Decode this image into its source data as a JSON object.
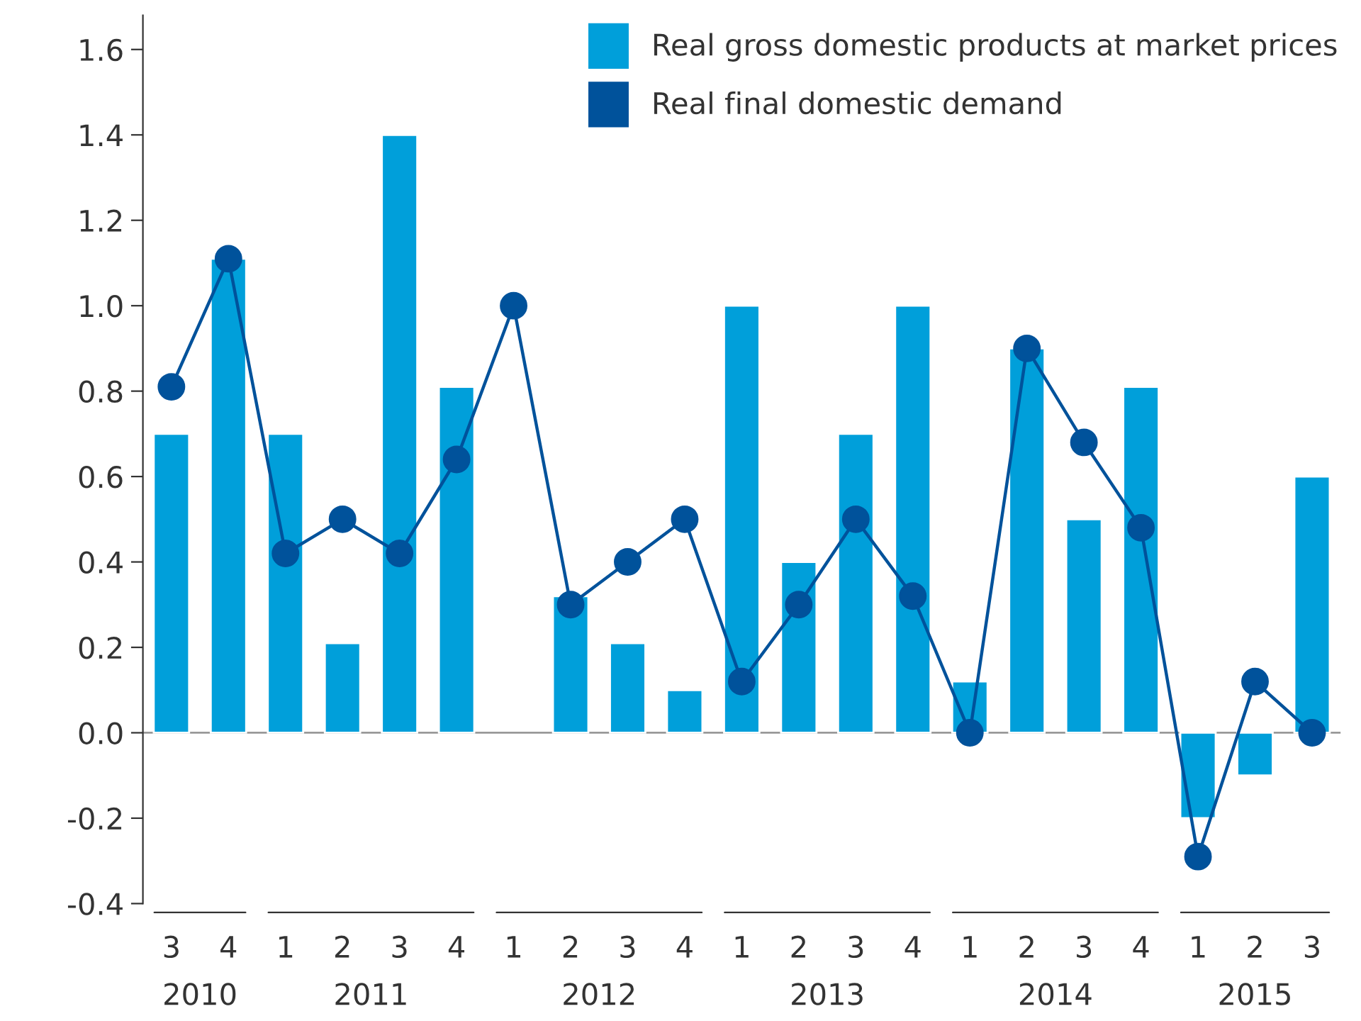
{
  "chart_data": {
    "type": "bar",
    "categories": [
      "3",
      "4",
      "1",
      "2",
      "3",
      "4",
      "1",
      "2",
      "3",
      "4",
      "1",
      "2",
      "3",
      "4",
      "1",
      "2",
      "3",
      "4",
      "1",
      "2",
      "3"
    ],
    "series": [
      {
        "name": "Real gross domestic products at market prices",
        "color": "#009fda",
        "values": [
          0.7,
          1.11,
          0.7,
          0.21,
          1.4,
          0.81,
          null,
          0.32,
          0.21,
          0.1,
          1.0,
          0.4,
          0.7,
          1.0,
          0.12,
          0.9,
          0.5,
          0.81,
          -0.2,
          -0.1,
          0.6
        ]
      },
      {
        "name": "Real final domestic demand",
        "type": "line",
        "color": "#00529b",
        "values": [
          0.81,
          1.11,
          0.42,
          0.5,
          0.42,
          0.64,
          1.0,
          0.3,
          0.4,
          0.5,
          0.12,
          0.3,
          0.5,
          0.32,
          0.0,
          0.9,
          0.68,
          0.48,
          -0.29,
          0.12,
          0.0
        ]
      }
    ],
    "annotations": [
      "2010",
      "2011",
      "2012",
      "2013",
      "2014",
      "2015"
    ],
    "ylim": [
      -0.4,
      1.68
    ],
    "yticks": [
      -0.4,
      -0.2,
      {
        "value": 0,
        "label": "0.0"
      },
      0.2,
      0.4,
      0.6,
      0.8,
      {
        "value": 1,
        "label": "1.0"
      },
      1.2,
      1.4,
      1.6
    ],
    "ref_lines": [
      {
        "axis": "y",
        "value": 0,
        "color": "#999999"
      }
    ],
    "grid": false,
    "legend": "top right",
    "marker": "circle",
    "line_style": "solid"
  }
}
